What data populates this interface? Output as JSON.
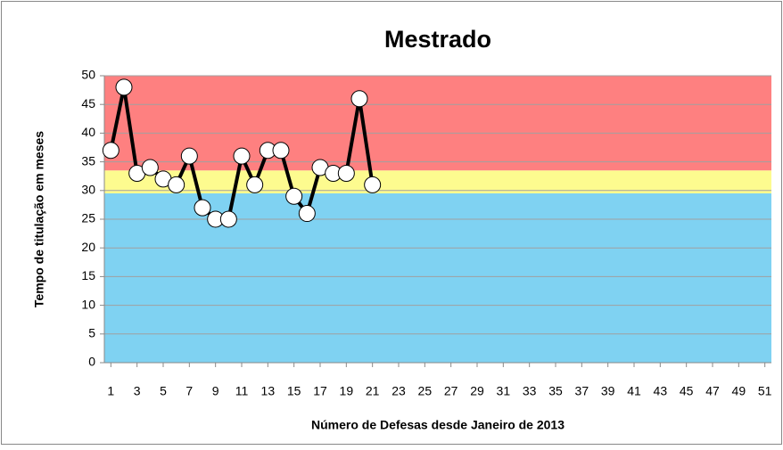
{
  "chart_data": {
    "type": "line",
    "title": "Mestrado",
    "x_label": "Número de Defesas desde Janeiro de 2013",
    "y_label": "Tempo de titulação em meses",
    "x": [
      1,
      2,
      3,
      4,
      5,
      6,
      7,
      8,
      9,
      10,
      11,
      12,
      13,
      14,
      15,
      16,
      17,
      18,
      19,
      20,
      21
    ],
    "series": [
      {
        "name": "Mestrado",
        "color": "#000000",
        "values": [
          37,
          48,
          33,
          34,
          32,
          31,
          36,
          27,
          25,
          25,
          36,
          31,
          37,
          37,
          29,
          26,
          34,
          33,
          33,
          46,
          31
        ]
      }
    ],
    "xlim": [
      0.5,
      51.5
    ],
    "xticks": [
      1,
      3,
      5,
      7,
      9,
      11,
      13,
      15,
      17,
      19,
      21,
      23,
      25,
      27,
      29,
      31,
      33,
      35,
      37,
      39,
      41,
      43,
      45,
      47,
      49,
      51
    ],
    "ylim": [
      0,
      50
    ],
    "yticks": [
      0,
      5,
      10,
      15,
      20,
      25,
      30,
      35,
      40,
      45,
      50
    ],
    "bands": [
      {
        "from": 0,
        "to": 29.5,
        "color": "#7fd2f2"
      },
      {
        "from": 29.5,
        "to": 33.5,
        "color": "#fdfb8f"
      },
      {
        "from": 33.5,
        "to": 50,
        "color": "#fe8080"
      }
    ],
    "grid": true
  }
}
